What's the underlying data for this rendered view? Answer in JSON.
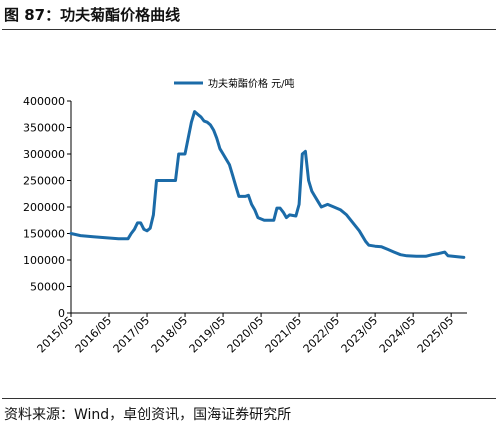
{
  "figure_title": "图 87：功夫菊酯价格曲线",
  "source": "资料来源：Wind，卓创资讯，国海证券研究所",
  "chart_data": {
    "type": "line",
    "series": [
      {
        "name": "功夫菊酯价格 元/吨",
        "color": "#1b6ba8",
        "points": [
          [
            "2015-05",
            150000
          ],
          [
            "2015-08",
            146000
          ],
          [
            "2015-12",
            144000
          ],
          [
            "2016-04",
            142000
          ],
          [
            "2016-08",
            140000
          ],
          [
            "2016-11",
            140000
          ],
          [
            "2016-12",
            150000
          ],
          [
            "2017-01",
            158000
          ],
          [
            "2017-02",
            170000
          ],
          [
            "2017-03",
            170000
          ],
          [
            "2017-04",
            158000
          ],
          [
            "2017-05",
            155000
          ],
          [
            "2017-06",
            160000
          ],
          [
            "2017-07",
            185000
          ],
          [
            "2017-08",
            250000
          ],
          [
            "2017-12",
            250000
          ],
          [
            "2018-02",
            250000
          ],
          [
            "2018-03",
            300000
          ],
          [
            "2018-05",
            300000
          ],
          [
            "2018-06",
            330000
          ],
          [
            "2018-07",
            360000
          ],
          [
            "2018-08",
            380000
          ],
          [
            "2018-09",
            375000
          ],
          [
            "2018-10",
            370000
          ],
          [
            "2018-11",
            362000
          ],
          [
            "2018-12",
            360000
          ],
          [
            "2019-01",
            355000
          ],
          [
            "2019-02",
            345000
          ],
          [
            "2019-03",
            330000
          ],
          [
            "2019-04",
            310000
          ],
          [
            "2019-05",
            300000
          ],
          [
            "2019-06",
            290000
          ],
          [
            "2019-07",
            280000
          ],
          [
            "2019-08",
            260000
          ],
          [
            "2019-09",
            240000
          ],
          [
            "2019-10",
            220000
          ],
          [
            "2019-12",
            220000
          ],
          [
            "2020-01",
            222000
          ],
          [
            "2020-02",
            205000
          ],
          [
            "2020-03",
            195000
          ],
          [
            "2020-04",
            180000
          ],
          [
            "2020-06",
            175000
          ],
          [
            "2020-08",
            175000
          ],
          [
            "2020-09",
            175000
          ],
          [
            "2020-10",
            198000
          ],
          [
            "2020-11",
            198000
          ],
          [
            "2020-12",
            190000
          ],
          [
            "2021-01",
            180000
          ],
          [
            "2021-02",
            185000
          ],
          [
            "2021-04",
            183000
          ],
          [
            "2021-05",
            205000
          ],
          [
            "2021-06",
            300000
          ],
          [
            "2021-07",
            305000
          ],
          [
            "2021-08",
            250000
          ],
          [
            "2021-09",
            230000
          ],
          [
            "2021-10",
            220000
          ],
          [
            "2021-11",
            210000
          ],
          [
            "2021-12",
            200000
          ],
          [
            "2022-02",
            205000
          ],
          [
            "2022-04",
            200000
          ],
          [
            "2022-06",
            195000
          ],
          [
            "2022-08",
            185000
          ],
          [
            "2022-10",
            170000
          ],
          [
            "2022-12",
            155000
          ],
          [
            "2023-01",
            145000
          ],
          [
            "2023-02",
            135000
          ],
          [
            "2023-03",
            128000
          ],
          [
            "2023-05",
            126000
          ],
          [
            "2023-07",
            125000
          ],
          [
            "2023-09",
            120000
          ],
          [
            "2023-11",
            115000
          ],
          [
            "2024-01",
            110000
          ],
          [
            "2024-03",
            108000
          ],
          [
            "2024-06",
            107000
          ],
          [
            "2024-09",
            107000
          ],
          [
            "2024-11",
            110000
          ],
          [
            "2025-01",
            112000
          ],
          [
            "2025-03",
            115000
          ],
          [
            "2025-04",
            108000
          ],
          [
            "2025-07",
            106000
          ],
          [
            "2025-09",
            105000
          ]
        ]
      }
    ],
    "x_ticks": [
      "2015/05",
      "2016/05",
      "2017/05",
      "2018/05",
      "2019/05",
      "2020/05",
      "2021/05",
      "2022/05",
      "2023/05",
      "2024/05",
      "2025/05"
    ],
    "y_ticks": [
      "0",
      "50000",
      "100000",
      "150000",
      "200000",
      "250000",
      "300000",
      "350000",
      "400000"
    ],
    "ylim": [
      0,
      400000
    ],
    "xlim": [
      "2015-05",
      "2025-10"
    ],
    "grid": false,
    "legend_position": "top-center"
  }
}
